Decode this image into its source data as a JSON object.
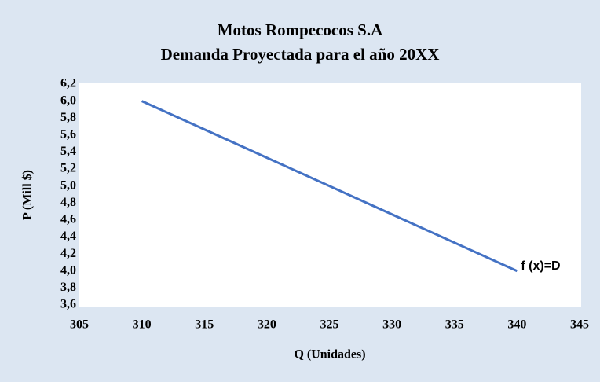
{
  "chart_data": {
    "type": "line",
    "title": "Motos Rompecocos S.A",
    "subtitle": "Demanda Proyectada para el año 20XX",
    "x_label": "Q (Unidades)",
    "y_label": "P (Mill $)",
    "annotation": "f (x)=D",
    "x": [
      310,
      340
    ],
    "series": [
      {
        "name": "f (x)=D",
        "color": "#4472c4",
        "values": [
          6.0,
          4.0
        ]
      }
    ],
    "xlim": [
      305,
      345
    ],
    "xticks": [
      305,
      310,
      315,
      320,
      325,
      330,
      335,
      340,
      345
    ],
    "ylim": [
      3.6,
      6.2
    ],
    "yticks": [
      {
        "value": 3.6,
        "label": "3,6"
      },
      {
        "value": 3.8,
        "label": "3,8"
      },
      {
        "value": 4.0,
        "label": "4,0"
      },
      {
        "value": 4.2,
        "label": "4,2"
      },
      {
        "value": 4.4,
        "label": "4,4"
      },
      {
        "value": 4.6,
        "label": "4,6"
      },
      {
        "value": 4.8,
        "label": "4,8"
      },
      {
        "value": 5.0,
        "label": "5,0"
      },
      {
        "value": 5.2,
        "label": "5,2"
      },
      {
        "value": 5.4,
        "label": "5,4"
      },
      {
        "value": 5.6,
        "label": "5,6"
      },
      {
        "value": 5.8,
        "label": "5,8"
      },
      {
        "value": 6.0,
        "label": "6,0"
      },
      {
        "value": 6.2,
        "label": "6,2"
      }
    ],
    "grid": false
  }
}
